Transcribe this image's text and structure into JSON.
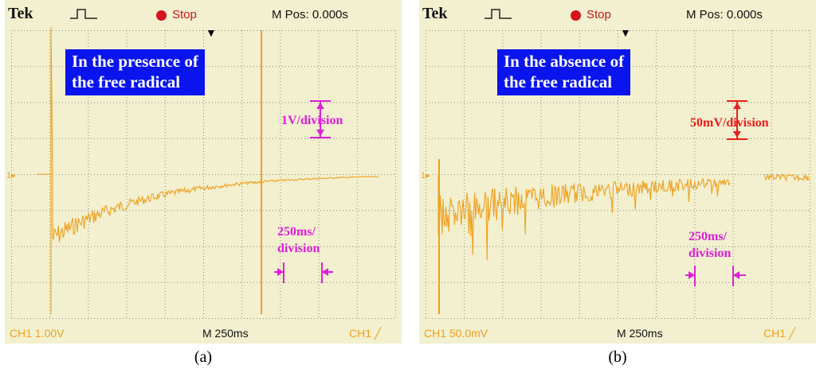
{
  "panels": [
    {
      "id": "a",
      "brand": "Tek",
      "run_state": "Stop",
      "position": "M Pos: 0.000s",
      "callout": [
        "In the presence of",
        "the free radical"
      ],
      "vertical_scale_label": "1V/division",
      "time_scale_label": [
        "250ms/",
        "division"
      ],
      "channel_setting": "CH1  1.00V",
      "timebase": "M 250ms",
      "trigger_readout": "CH1  ╱",
      "channel_marker": "1▸",
      "caption": "(a)",
      "annotation_color": "#e01ed8",
      "signal_color": "#f0a020"
    },
    {
      "id": "b",
      "brand": "Tek",
      "run_state": "Stop",
      "position": "M Pos: 0.000s",
      "callout": [
        "In the absence of",
        "the free radical"
      ],
      "vertical_scale_label": "50mV/division",
      "time_scale_label": [
        "250ms/",
        "division"
      ],
      "channel_setting": "CH1  50.0mV",
      "timebase": "M 250ms",
      "trigger_readout": "CH1  ╱",
      "channel_marker": "1▸",
      "caption": "(b)",
      "annotation_color": "#ee1c1c",
      "signal_color": "#f0a020"
    }
  ]
}
